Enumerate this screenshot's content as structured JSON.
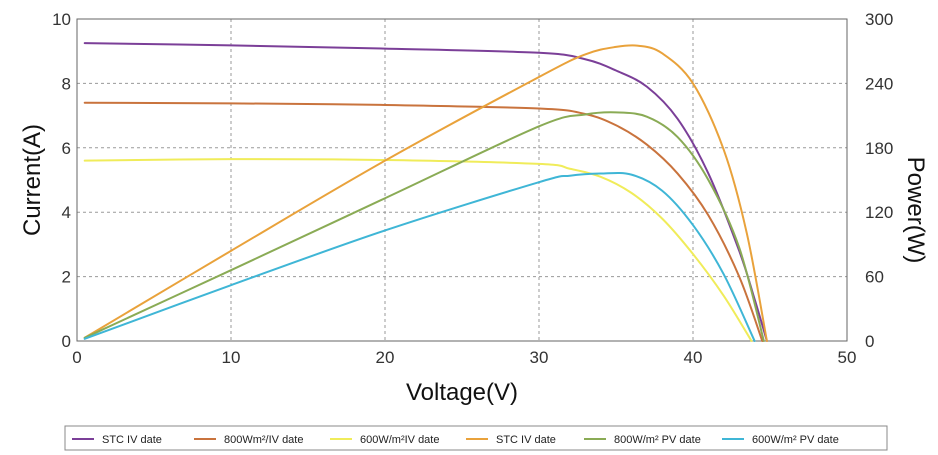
{
  "chart_data": {
    "type": "line",
    "title": "",
    "xlabel": "Voltage(V)",
    "ylabel_left": "Current(A)",
    "ylabel_right": "Power(W)",
    "xlim": [
      0,
      50
    ],
    "ylim_left": [
      0,
      10
    ],
    "ylim_right": [
      0,
      300
    ],
    "x_ticks": [
      "0",
      "10",
      "20",
      "30",
      "40",
      "50"
    ],
    "y_left_ticks": [
      "0",
      "2",
      "4",
      "6",
      "8",
      "10"
    ],
    "y_right_ticks": [
      "0",
      "60",
      "120",
      "180",
      "240",
      "300"
    ],
    "grid": true,
    "legend_placement": "bottom",
    "series": [
      {
        "name": "STC IV date",
        "axis": "left",
        "color": "#7b3f98",
        "x": [
          0.5,
          10,
          20,
          30,
          33,
          35,
          37,
          39,
          41,
          43,
          44,
          44.8
        ],
        "values": [
          9.25,
          9.18,
          9.08,
          8.95,
          8.75,
          8.4,
          7.9,
          6.9,
          5.2,
          2.8,
          1.3,
          0
        ]
      },
      {
        "name": "800Wm²/IV  date",
        "axis": "left",
        "color": "#c9733d",
        "x": [
          0.5,
          10,
          20,
          30,
          33,
          35,
          37,
          39,
          41,
          43,
          44.5
        ],
        "values": [
          7.4,
          7.38,
          7.33,
          7.22,
          7.05,
          6.7,
          6.1,
          5.2,
          3.9,
          2.0,
          0
        ]
      },
      {
        "name": "600W/m²IV  date",
        "axis": "left",
        "color": "#f0ec5a",
        "x": [
          0.5,
          10,
          20,
          30,
          32,
          34,
          36,
          38,
          40,
          42,
          43.8
        ],
        "values": [
          5.6,
          5.65,
          5.62,
          5.5,
          5.35,
          5.1,
          4.6,
          3.8,
          2.7,
          1.4,
          0
        ]
      },
      {
        "name": "STC IV date",
        "axis": "right",
        "color": "#e9a23b",
        "x": [
          0.5,
          10,
          20,
          30,
          33,
          35,
          36.5,
          38,
          40,
          42,
          43.5,
          44.8
        ],
        "values": [
          3,
          84,
          168,
          246,
          267,
          274,
          275,
          268,
          240,
          178,
          100,
          0
        ]
      },
      {
        "name": "800W/m² PV  date",
        "axis": "right",
        "color": "#8aab55",
        "x": [
          0.5,
          10,
          20,
          30,
          33,
          35,
          37,
          39,
          41,
          43,
          44.6
        ],
        "values": [
          3,
          66,
          133,
          200,
          211,
          213,
          209,
          190,
          150,
          87,
          0
        ]
      },
      {
        "name": "600W/m² PV  date",
        "axis": "right",
        "color": "#3fb6d6",
        "x": [
          0.5,
          10,
          20,
          30,
          32,
          34,
          36,
          38,
          40,
          42,
          44
        ],
        "values": [
          2,
          52,
          103,
          148,
          154,
          156,
          155,
          140,
          108,
          62,
          0
        ]
      }
    ]
  }
}
